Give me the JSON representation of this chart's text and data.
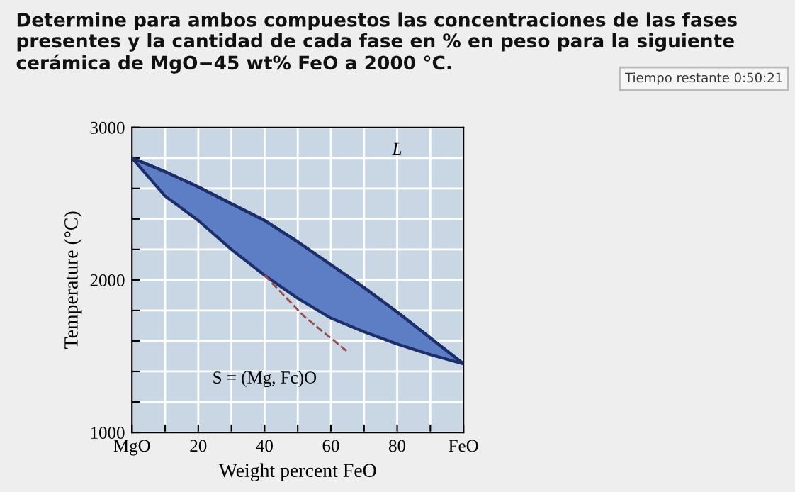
{
  "chart_data": {
    "type": "line",
    "title": "Determine para ambos compuestos las concentraciones de las fases presentes y la cantidad de cada fase en % en peso para la siguiente cerámica de MgO−45 wt% FeO a 2000 °C.",
    "xlabel": "Weight percent FeO",
    "ylabel": "Temperature (°C)",
    "x": [
      0,
      10,
      20,
      30,
      40,
      50,
      60,
      70,
      80,
      90,
      100
    ],
    "series": [
      {
        "color": "#1c2f6b",
        "values": [
          2800,
          2710,
          2610,
          2500,
          2390,
          2250,
          2100,
          1950,
          1790,
          1620,
          1450
        ],
        "lower": [
          2800,
          2550,
          2390,
          2200,
          2030,
          1880,
          1750,
          1660,
          1580,
          1510,
          1450
        ],
        "upper": [
          2800,
          2710,
          2610,
          2500,
          2390,
          2250,
          2100,
          1950,
          1790,
          1620,
          1450
        ]
      },
      {
        "color": "#9a4a4a",
        "line_style": "dashed",
        "x": [
          40,
          52,
          65
        ],
        "values": [
          2030,
          1760,
          1530
        ]
      }
    ],
    "xlim": [
      0,
      100
    ],
    "ylim": [
      1000,
      3000
    ],
    "xticks": [
      {
        "value": 0,
        "label": "MgO"
      },
      {
        "value": 10,
        "label": null
      },
      20,
      {
        "value": 30,
        "label": null
      },
      40,
      {
        "value": 50,
        "label": null
      },
      60,
      {
        "value": 70,
        "label": null
      },
      80,
      {
        "value": 90,
        "label": null
      },
      {
        "value": 100,
        "label": "FeO"
      }
    ],
    "yticks": [
      1000,
      {
        "value": 1200,
        "label": null
      },
      {
        "value": 1400,
        "label": null
      },
      {
        "value": 1600,
        "label": null
      },
      {
        "value": 1800,
        "label": null
      },
      2000,
      {
        "value": 2200,
        "label": null
      },
      {
        "value": 2400,
        "label": null
      },
      {
        "value": 2600,
        "label": null
      },
      {
        "value": 2800,
        "label": null
      },
      3000
    ],
    "grid": true,
    "marker": "none",
    "line_style": "solid",
    "annotations": [
      "L",
      "S = (Mg, Fc)O",
      "Tiempo restante 0:50:21"
    ]
  }
}
